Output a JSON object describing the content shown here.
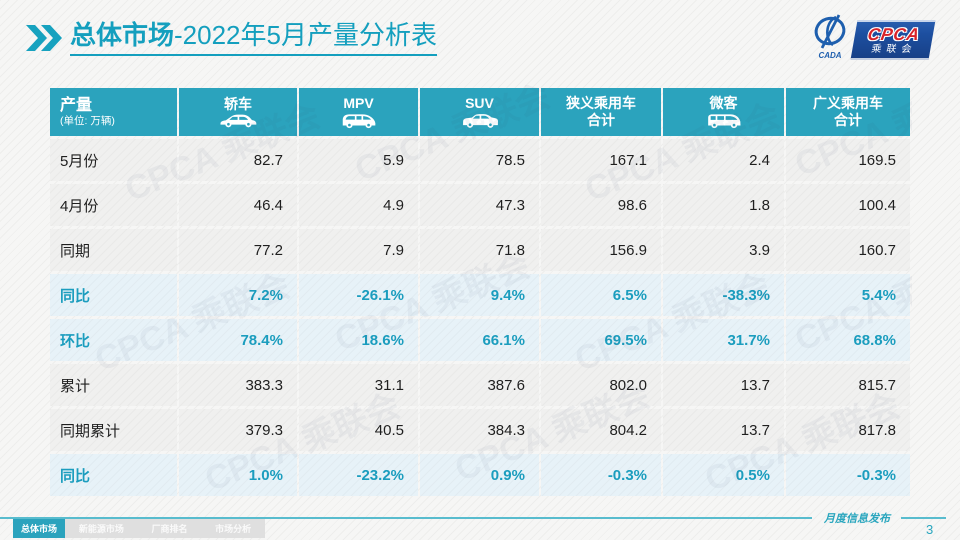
{
  "slide": {
    "title": {
      "bold": "总体市场",
      "rest": "-2022年5月产量分析表"
    },
    "logo": {
      "cpca": "CPCA",
      "cn": "乘联会",
      "swirl_caption": "CADA"
    },
    "watermark_text": "CPCA 乘联会"
  },
  "table": {
    "corner": {
      "label": "产量",
      "unit": "(单位: 万辆)"
    },
    "columns": [
      {
        "id": "sedan",
        "line1": "轿车",
        "line2": "",
        "icon": "sedan-icon"
      },
      {
        "id": "mpv",
        "line1": "MPV",
        "line2": "",
        "icon": "mpv-icon"
      },
      {
        "id": "suv",
        "line1": "SUV",
        "line2": "",
        "icon": "suv-icon"
      },
      {
        "id": "narrow-pv-total",
        "line1": "狭义乘用车",
        "line2": "合计",
        "icon": ""
      },
      {
        "id": "minibus",
        "line1": "微客",
        "line2": "",
        "icon": "minibus-icon"
      },
      {
        "id": "broad-pv-total",
        "line1": "广义乘用车",
        "line2": "合计",
        "icon": ""
      }
    ],
    "rows": [
      {
        "label": "5月份",
        "highlight": false,
        "values": [
          "82.7",
          "5.9",
          "78.5",
          "167.1",
          "2.4",
          "169.5"
        ]
      },
      {
        "label": "4月份",
        "highlight": false,
        "values": [
          "46.4",
          "4.9",
          "47.3",
          "98.6",
          "1.8",
          "100.4"
        ]
      },
      {
        "label": "同期",
        "highlight": false,
        "values": [
          "77.2",
          "7.9",
          "71.8",
          "156.9",
          "3.9",
          "160.7"
        ]
      },
      {
        "label": "同比",
        "highlight": true,
        "values": [
          "7.2%",
          "-26.1%",
          "9.4%",
          "6.5%",
          "-38.3%",
          "5.4%"
        ]
      },
      {
        "label": "环比",
        "highlight": true,
        "values": [
          "78.4%",
          "18.6%",
          "66.1%",
          "69.5%",
          "31.7%",
          "68.8%"
        ]
      },
      {
        "label": "累计",
        "highlight": false,
        "values": [
          "383.3",
          "31.1",
          "387.6",
          "802.0",
          "13.7",
          "815.7"
        ]
      },
      {
        "label": "同期累计",
        "highlight": false,
        "values": [
          "379.3",
          "40.5",
          "384.3",
          "804.2",
          "13.7",
          "817.8"
        ]
      },
      {
        "label": "同比",
        "highlight": true,
        "values": [
          "1.0%",
          "-23.2%",
          "0.9%",
          "-0.3%",
          "0.5%",
          "-0.3%"
        ]
      }
    ]
  },
  "footer": {
    "tabs": [
      {
        "id": "overall-market",
        "label": "总体市场",
        "active": true
      },
      {
        "id": "nev-market",
        "label": "新能源市场",
        "active": false
      },
      {
        "id": "oem-ranking",
        "label": "厂商排名",
        "active": false
      },
      {
        "id": "market-analysis",
        "label": "市场分析",
        "active": false
      }
    ],
    "publication": "月度信息发布",
    "page_number": "3"
  },
  "colors": {
    "accent": "#2BA3BD",
    "title_teal": "#149FBE",
    "highlight_row_bg": "#E7F2F8",
    "highlight_text": "#1B9DBE",
    "logo_blue": "#1D4FA0",
    "logo_red": "#D8232A",
    "footer_rule": "#58BCCE"
  },
  "chart_data": {
    "type": "table",
    "title": "总体市场-2022年5月产量分析表",
    "unit": "万辆",
    "columns": [
      "轿车",
      "MPV",
      "SUV",
      "狭义乘用车合计",
      "微客",
      "广义乘用车合计"
    ],
    "rows": [
      {
        "label": "5月份",
        "values": [
          82.7,
          5.9,
          78.5,
          167.1,
          2.4,
          169.5
        ]
      },
      {
        "label": "4月份",
        "values": [
          46.4,
          4.9,
          47.3,
          98.6,
          1.8,
          100.4
        ]
      },
      {
        "label": "同期",
        "values": [
          77.2,
          7.9,
          71.8,
          156.9,
          3.9,
          160.7
        ]
      },
      {
        "label": "同比",
        "values": [
          "7.2%",
          "-26.1%",
          "9.4%",
          "6.5%",
          "-38.3%",
          "5.4%"
        ]
      },
      {
        "label": "环比",
        "values": [
          "78.4%",
          "18.6%",
          "66.1%",
          "69.5%",
          "31.7%",
          "68.8%"
        ]
      },
      {
        "label": "累计",
        "values": [
          383.3,
          31.1,
          387.6,
          802.0,
          13.7,
          815.7
        ]
      },
      {
        "label": "同期累计",
        "values": [
          379.3,
          40.5,
          384.3,
          804.2,
          13.7,
          817.8
        ]
      },
      {
        "label": "同比",
        "values": [
          "1.0%",
          "-23.2%",
          "0.9%",
          "-0.3%",
          "0.5%",
          "-0.3%"
        ]
      }
    ]
  }
}
